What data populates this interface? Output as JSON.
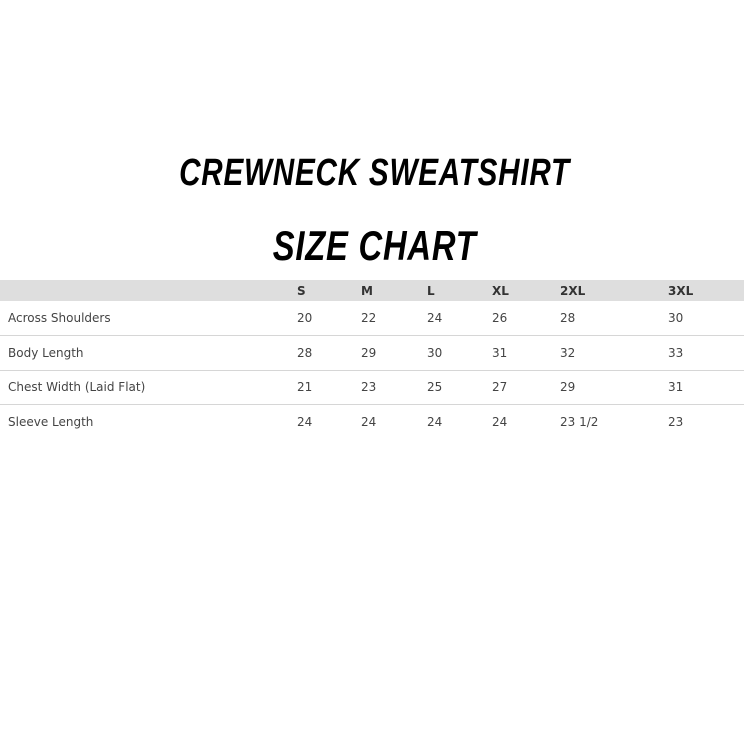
{
  "title": "CREWNECK SWEATSHIRT",
  "subtitle": "SIZE CHART",
  "table": {
    "columns": [
      "S",
      "M",
      "L",
      "XL",
      "2XL",
      "3XL"
    ],
    "rows": [
      {
        "label": "Across Shoulders",
        "values": [
          "20",
          "22",
          "24",
          "26",
          "28",
          "30"
        ]
      },
      {
        "label": "Body Length",
        "values": [
          "28",
          "29",
          "30",
          "31",
          "32",
          "33"
        ]
      },
      {
        "label": "Chest Width (Laid Flat)",
        "values": [
          "21",
          "23",
          "25",
          "27",
          "29",
          "31"
        ]
      },
      {
        "label": "Sleeve Length",
        "values": [
          "24",
          "24",
          "24",
          "24",
          "23 1/2",
          "23"
        ]
      }
    ]
  }
}
